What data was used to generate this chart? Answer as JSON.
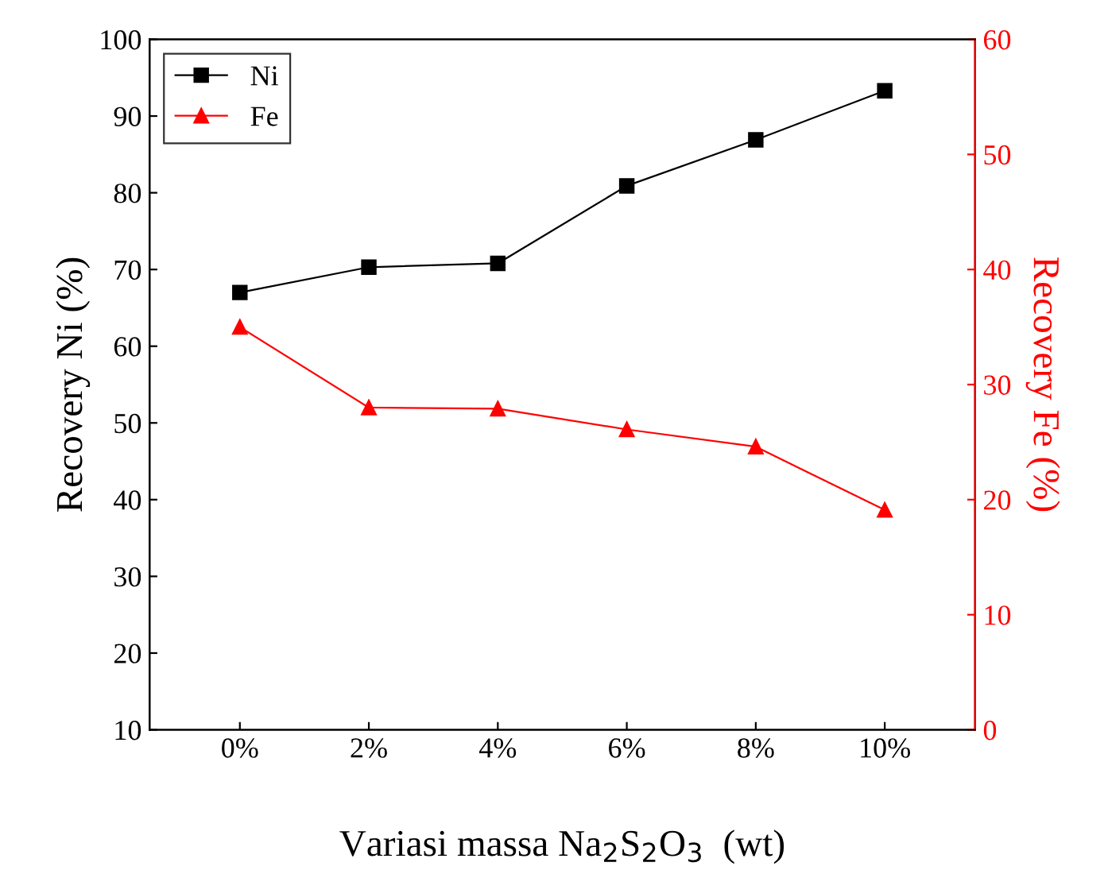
{
  "chart_data": {
    "type": "line",
    "xlabel": "Variasi massa Na$_{2}$S$_{2}$O$_{3}$  (wt)",
    "ylabel": "Recovery Ni (%)",
    "y2label": "Recovery Fe (%)",
    "categories": [
      "0%",
      "2%",
      "4%",
      "6%",
      "8%",
      "10%"
    ],
    "series": [
      {
        "name": "Ni",
        "color": "#000000",
        "marker": "square",
        "values": [
          67.0,
          70.3,
          70.8,
          80.9,
          86.9,
          93.3
        ]
      },
      {
        "name": "Fe",
        "color": "#ff0000",
        "marker": "triangle",
        "axis": "y2",
        "values": [
          35.0,
          28.0,
          27.9,
          26.1,
          24.6,
          19.1
        ]
      }
    ],
    "ylim": [
      10,
      100
    ],
    "yticks": [
      10,
      20,
      30,
      40,
      50,
      60,
      70,
      80,
      90,
      100
    ],
    "y2lim": [
      0,
      60
    ],
    "y2ticks": [
      0,
      10,
      20,
      30,
      40,
      50,
      60
    ],
    "grid": false,
    "legend": "top left",
    "line_style": "solid"
  }
}
